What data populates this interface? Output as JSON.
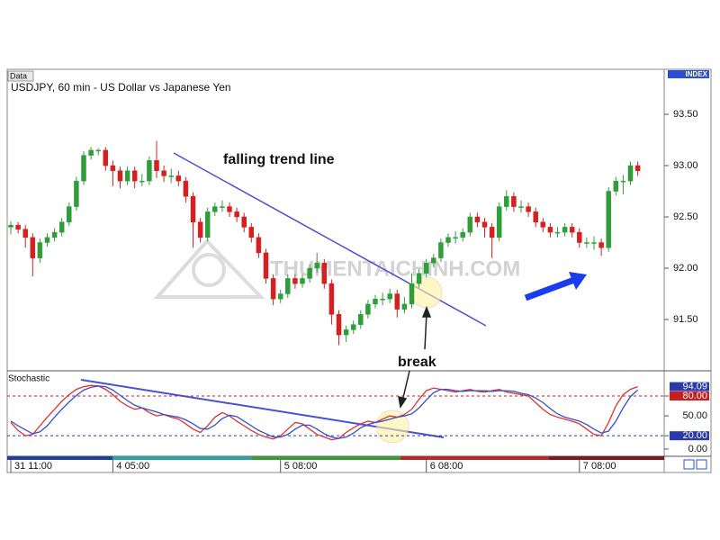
{
  "chart_data": [
    {
      "type": "candlestick",
      "panel_label": "Data",
      "title": "USDJPY, 60 min - US Dollar vs Japanese Yen",
      "axis_label": "INDEX",
      "annotations": [
        "falling trend line",
        "break"
      ],
      "watermark": "THUMENTAICHINH.COM",
      "categories": [
        "31 11:00",
        null,
        null,
        null,
        null,
        null,
        null,
        null,
        null,
        null,
        null,
        null,
        null,
        null,
        "4 05:00",
        null,
        null,
        null,
        null,
        null,
        null,
        null,
        null,
        null,
        null,
        null,
        null,
        null,
        null,
        null,
        null,
        null,
        null,
        null,
        null,
        null,
        null,
        "5 08:00",
        null,
        null,
        null,
        null,
        null,
        null,
        null,
        null,
        null,
        null,
        null,
        null,
        null,
        null,
        null,
        null,
        null,
        null,
        null,
        "6 08:00",
        null,
        null,
        null,
        null,
        null,
        null,
        null,
        null,
        null,
        null,
        null,
        null,
        null,
        null,
        null,
        null,
        null,
        null,
        null,
        null,
        "7 08:00",
        null,
        null,
        null,
        null,
        null,
        null,
        null,
        null
      ],
      "open": [
        92.4,
        92.42,
        92.38,
        92.3,
        92.1,
        92.25,
        92.3,
        92.35,
        92.45,
        92.6,
        92.85,
        93.1,
        93.15,
        93.15,
        93.0,
        92.95,
        92.85,
        92.95,
        92.85,
        92.85,
        93.05,
        92.95,
        92.9,
        92.9,
        92.85,
        92.7,
        92.45,
        92.3,
        92.55,
        92.6,
        92.6,
        92.55,
        92.5,
        92.4,
        92.3,
        92.15,
        91.9,
        91.7,
        91.75,
        91.9,
        91.85,
        91.9,
        92.0,
        92.05,
        91.85,
        91.55,
        91.35,
        91.4,
        91.45,
        91.55,
        91.65,
        91.7,
        91.7,
        91.75,
        91.6,
        91.65,
        91.85,
        91.95,
        92.05,
        92.1,
        92.25,
        92.3,
        92.3,
        92.35,
        92.5,
        92.45,
        92.4,
        92.3,
        92.6,
        92.7,
        92.6,
        92.6,
        92.55,
        92.45,
        92.4,
        92.35,
        92.35,
        92.4,
        92.35,
        92.25,
        92.25,
        92.25,
        92.2,
        92.75,
        92.85,
        92.85,
        93.0
      ],
      "high": [
        92.46,
        92.45,
        92.42,
        92.34,
        92.29,
        92.34,
        92.39,
        92.49,
        92.64,
        92.89,
        93.14,
        93.18,
        93.17,
        93.18,
        93.05,
        92.99,
        92.99,
        92.99,
        92.92,
        93.09,
        93.24,
        93.0,
        92.97,
        92.95,
        92.89,
        92.74,
        92.49,
        92.59,
        92.64,
        92.66,
        92.64,
        92.59,
        92.54,
        92.44,
        92.34,
        92.19,
        91.94,
        91.79,
        91.94,
        91.94,
        91.94,
        92.04,
        92.15,
        92.09,
        91.89,
        91.59,
        91.44,
        91.49,
        91.59,
        91.69,
        91.74,
        91.76,
        91.8,
        91.79,
        91.72,
        91.95,
        91.99,
        92.09,
        92.14,
        92.29,
        92.34,
        92.36,
        92.39,
        92.54,
        92.54,
        92.49,
        92.44,
        92.64,
        92.76,
        92.74,
        92.66,
        92.64,
        92.59,
        92.49,
        92.44,
        92.4,
        92.44,
        92.44,
        92.39,
        92.3,
        92.31,
        92.29,
        92.79,
        92.89,
        92.91,
        93.04,
        93.04
      ],
      "low": [
        92.33,
        92.34,
        92.2,
        91.92,
        92.05,
        92.21,
        92.26,
        92.31,
        92.41,
        92.56,
        92.81,
        93.06,
        93.1,
        92.95,
        92.8,
        92.78,
        92.81,
        92.78,
        92.8,
        92.81,
        92.88,
        92.84,
        92.83,
        92.8,
        92.64,
        92.2,
        92.25,
        92.26,
        92.51,
        92.55,
        92.5,
        92.45,
        92.35,
        92.25,
        92.1,
        91.85,
        91.64,
        91.66,
        91.71,
        91.8,
        91.81,
        91.86,
        91.96,
        91.8,
        91.45,
        91.25,
        91.28,
        91.36,
        91.41,
        91.51,
        91.61,
        91.64,
        91.66,
        91.52,
        91.56,
        91.61,
        91.81,
        91.91,
        92.01,
        92.06,
        92.21,
        92.24,
        92.26,
        92.31,
        92.4,
        92.3,
        92.1,
        92.26,
        92.56,
        92.55,
        92.54,
        92.5,
        92.4,
        92.35,
        92.3,
        92.3,
        92.31,
        92.3,
        92.2,
        92.2,
        92.18,
        92.12,
        92.16,
        92.71,
        92.72,
        92.81,
        92.9
      ],
      "close": [
        92.42,
        92.38,
        92.3,
        92.1,
        92.25,
        92.3,
        92.35,
        92.45,
        92.6,
        92.85,
        93.1,
        93.15,
        93.15,
        93.0,
        92.95,
        92.85,
        92.95,
        92.85,
        92.85,
        93.05,
        92.95,
        92.9,
        92.9,
        92.85,
        92.7,
        92.45,
        92.3,
        92.55,
        92.6,
        92.6,
        92.55,
        92.5,
        92.4,
        92.3,
        92.15,
        91.9,
        91.7,
        91.75,
        91.9,
        91.85,
        91.9,
        92.0,
        92.05,
        91.85,
        91.55,
        91.35,
        91.4,
        91.45,
        91.55,
        91.65,
        91.7,
        91.7,
        91.75,
        91.6,
        91.65,
        91.85,
        91.95,
        92.05,
        92.1,
        92.25,
        92.3,
        92.3,
        92.35,
        92.5,
        92.45,
        92.4,
        92.3,
        92.6,
        92.7,
        92.6,
        92.6,
        92.55,
        92.45,
        92.4,
        92.35,
        92.35,
        92.4,
        92.35,
        92.25,
        92.25,
        92.25,
        92.2,
        92.75,
        92.85,
        92.85,
        93.0,
        92.95
      ],
      "colors": {
        "up": "#2f9e3a",
        "down": "#d42020"
      },
      "ylim": [
        91.0,
        93.93
      ],
      "yticks": [
        {
          "value": 93.5,
          "label": "93.50"
        },
        {
          "value": 93.0,
          "label": "93.00"
        },
        {
          "value": 92.5,
          "label": "92.50"
        },
        {
          "value": 92.0,
          "label": "92.00"
        },
        {
          "value": 91.5,
          "label": "91.50"
        }
      ]
    },
    {
      "type": "line",
      "title": "Stochastic",
      "series": [
        {
          "color": "#e03030",
          "values": [
            40,
            28,
            20,
            22,
            35,
            48,
            60,
            72,
            82,
            90,
            94,
            96,
            95,
            90,
            82,
            72,
            65,
            60,
            62,
            55,
            50,
            52,
            48,
            45,
            38,
            30,
            25,
            35,
            48,
            55,
            50,
            42,
            35,
            28,
            22,
            18,
            15,
            20,
            30,
            40,
            38,
            30,
            22,
            18,
            14,
            16,
            25,
            32,
            38,
            42,
            40,
            45,
            50,
            48,
            52,
            60,
            75,
            88,
            92,
            90,
            88,
            86,
            88,
            90,
            87,
            86,
            88,
            90,
            86,
            84,
            82,
            80,
            70,
            60,
            52,
            48,
            45,
            42,
            38,
            30,
            22,
            20,
            40,
            65,
            82,
            90,
            94.09
          ]
        },
        {
          "color": "#3050d0",
          "values": [
            42,
            35,
            29,
            23,
            26,
            35,
            48,
            60,
            71,
            81,
            89,
            93,
            95,
            94,
            89,
            81,
            73,
            66,
            62,
            59,
            56,
            52,
            50,
            48,
            44,
            38,
            31,
            30,
            36,
            46,
            51,
            49,
            42,
            35,
            28,
            23,
            18,
            18,
            22,
            30,
            36,
            36,
            30,
            23,
            18,
            16,
            18,
            24,
            32,
            37,
            40,
            42,
            45,
            48,
            50,
            53,
            62,
            74,
            85,
            90,
            90,
            88,
            87,
            88,
            88,
            88,
            87,
            88,
            88,
            87,
            84,
            82,
            77,
            70,
            61,
            53,
            48,
            45,
            42,
            37,
            30,
            24,
            27,
            42,
            62,
            79,
            89
          ]
        }
      ],
      "ylim": [
        -11,
        118
      ],
      "yticks": [
        {
          "value": 80,
          "label": "80.00"
        },
        {
          "value": 50,
          "label": "50.00"
        },
        {
          "value": 20,
          "label": "20.00"
        },
        {
          "value": 0,
          "label": "0.00"
        }
      ],
      "level_lines": [
        {
          "value": 80,
          "color": "#c81e1e"
        },
        {
          "value": 20,
          "color": "#2a3aa8"
        }
      ]
    }
  ]
}
